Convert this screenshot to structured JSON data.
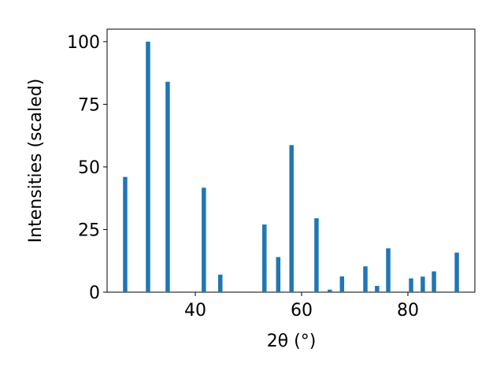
{
  "chart_data": {
    "type": "bar",
    "xlabel": "2θ (°)",
    "ylabel": "Intensities (scaled)",
    "x": [
      26.8,
      31.1,
      34.8,
      41.6,
      44.7,
      53.0,
      55.6,
      58.1,
      62.8,
      65.3,
      67.6,
      72.0,
      74.2,
      76.3,
      80.6,
      82.8,
      84.9,
      89.2
    ],
    "values": [
      46,
      100,
      84,
      41.7,
      7,
      27,
      14,
      58.7,
      29.5,
      1,
      6.3,
      10.3,
      2.5,
      17.5,
      5.5,
      6.2,
      8.3,
      15.8
    ],
    "color": "#1f77b4",
    "xlim": [
      23.4,
      92.6
    ],
    "xticks": [
      40,
      60,
      80
    ],
    "ylim": [
      0,
      105
    ],
    "yticks": [
      0,
      25,
      50,
      75,
      100
    ]
  }
}
